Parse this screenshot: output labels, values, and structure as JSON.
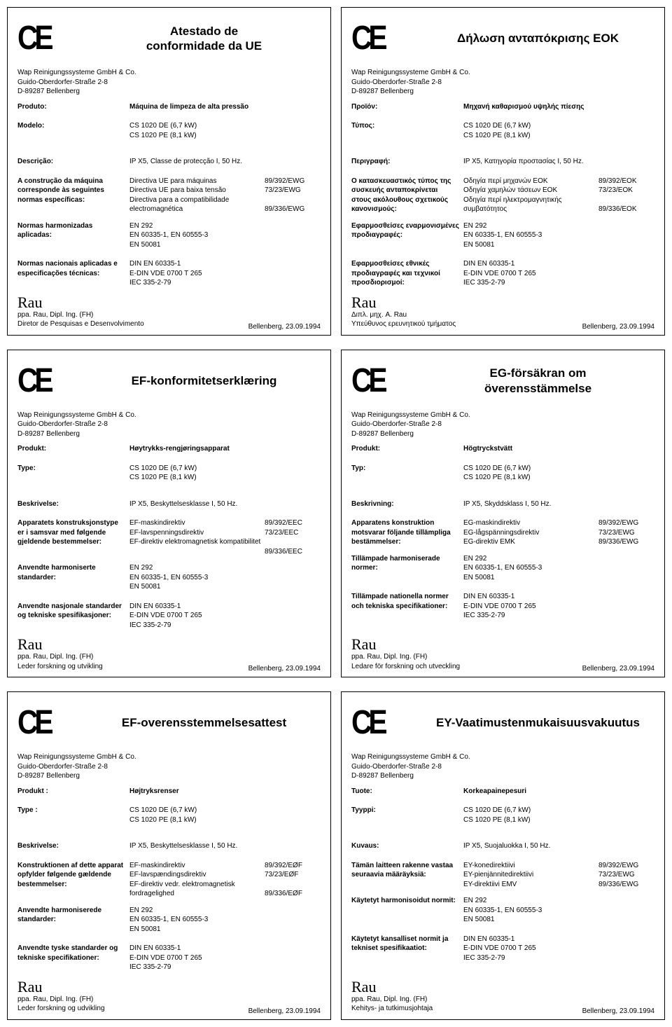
{
  "common": {
    "company": "Wap Reinigungssysteme GmbH & Co.",
    "street": "Guido-Oberdorfer-Straße 2-8",
    "city": "D-89287 Bellenberg",
    "model1": "CS 1020 DE (6,7 kW)",
    "model2": "CS 1020 PE (8,1 kW)",
    "harm1": "EN 292",
    "harm2": "EN 60335-1, EN 60555-3",
    "harm3": "EN 50081",
    "nat1": "DIN EN 60335-1",
    "nat2": "E-DIN VDE 0700 T 265",
    "nat3": "IEC 335-2-79",
    "signature": "ppa. Rau, Dipl. Ing. (FH)",
    "location": "Bellenberg, 23.09.1994",
    "ce": "CE"
  },
  "cards": [
    {
      "title": "Atestado de\nconformidade da UE",
      "lbl_product": "Produto:",
      "val_product": "Máquina de limpeza de alta pressão",
      "lbl_model": "Modelo:",
      "lbl_desc": "Descrição:",
      "val_desc": "IP X5, Classe de protecção I, 50 Hz.",
      "lbl_dir": "A construção da máquina corresponde às seguintes normas específicas:",
      "dir1": "Directiva UE para máquinas",
      "dir2": "Directiva UE para baixa tensão",
      "dir3": "Directiva para a compatibilidade electromagnética",
      "code1": "89/392/EWG",
      "code2": "73/23/EWG",
      "code3": "89/336/EWG",
      "lbl_harm": "Normas harmonizadas aplicadas:",
      "lbl_nat": "Normas nacionais aplicadas e especificações técnicas:",
      "role": "Diretor de Pesquisas e Desenvolvimento",
      "signer_override": ""
    },
    {
      "title": "Δήλωση ανταπόκρισης ΕΟΚ",
      "lbl_product": "Προϊόν:",
      "val_product": "Μηχανή καθαρισμού υψηλής πίεσης",
      "lbl_model": "Τύπος:",
      "lbl_desc": "Περιγραφή:",
      "val_desc": "IP X5, Κατηγορία προστασίας I, 50 Hz.",
      "lbl_dir": "Ο κατασκευαστικός τύπος της συσκευής ανταποκρίνεται στους ακόλουθους σχετικούς κανονισμούς:",
      "dir1": "Οδηγία περί μηχανών ΕΟΚ",
      "dir2": "Οδηγία χαμηλών τάσεων ΕΟΚ",
      "dir3": "Οδηγία περί ηλεκτρομαγνητικής συμβατότητος",
      "code1": "89/392/ΕΟΚ",
      "code2": "73/23/ΕΟΚ",
      "code3": "89/336/ΕΟΚ",
      "lbl_harm": "Εφαρμοσθείσες εναρμονισμένες προδιαγραφές:",
      "lbl_nat": "Εφαρμοσθείσες εθνικές προδιαγραφές και τεχνικοί προσδιορισμοί:",
      "role": "Υπεύθυνος ερευνητικού τμήματος",
      "signer_override": "Διπλ. μηχ. A. Rau"
    },
    {
      "title": "EF-konformitetserklæring",
      "lbl_product": "Produkt:",
      "val_product": "Høytrykks-rengjøringsapparat",
      "lbl_model": "Type:",
      "lbl_desc": "Beskrivelse:",
      "val_desc": "IP X5, Beskyttelsesklasse I, 50 Hz.",
      "lbl_dir": "Apparatets konstruksjonstype er i samsvar med følgende gjeldende bestemmelser:",
      "dir1": "EF-maskindirektiv",
      "dir2": "EF-lavspenningsdirektiv",
      "dir3": "EF-direktiv elektromagnetisk kompatibilitet",
      "code1": "89/392/EEC",
      "code2": "73/23/EEC",
      "code3": "89/336/EEC",
      "lbl_harm": "Anvendte harmoniserte standarder:",
      "lbl_nat": "Anvendte nasjonale standarder og tekniske spesifikasjoner:",
      "role": "Leder forskning og utvikling",
      "signer_override": ""
    },
    {
      "title": "EG-försäkran om\növerensstämmelse",
      "lbl_product": "Produkt:",
      "val_product": "Högtryckstvätt",
      "lbl_model": "Typ:",
      "lbl_desc": "Beskrivning:",
      "val_desc": "IP X5, Skyddsklass I, 50 Hz.",
      "lbl_dir": "Apparatens konstruktion motsvarar följande tillämpliga bestämmelser:",
      "dir1": "EG-maskindirektiv",
      "dir2": "EG-lågspänningsdirektiv",
      "dir3": "EG-direktiv EMK",
      "code1": "89/392/EWG",
      "code2": "73/23/EWG",
      "code3": "89/336/EWG",
      "lbl_harm": "Tillämpade harmoniserade normer:",
      "lbl_nat": "Tillämpade nationella normer och tekniska specifikationer:",
      "role": "Ledare för forskning och utveckling",
      "signer_override": ""
    },
    {
      "title": "EF-overensstemmelsesattest",
      "lbl_product": "Produkt :",
      "val_product": "Højtryksrenser",
      "lbl_model": "Type :",
      "lbl_desc": "Beskrivelse:",
      "val_desc": "IP X5, Beskyttelsesklasse I, 50 Hz.",
      "lbl_dir": "Konstruktionen af dette apparat opfylder følgende gældende bestemmelser:",
      "dir1": "EF-maskindirektiv",
      "dir2": "EF-lavspændingsdirektiv",
      "dir3": "EF-direktiv vedr. elektromagnetisk fordragelighed",
      "code1": "89/392/EØF",
      "code2": "73/23/EØF",
      "code3": "89/336/EØF",
      "lbl_harm": "Anvendte harmoniserede standarder:",
      "lbl_nat": "Anvendte tyske standarder og tekniske specifikationer:",
      "role": "Leder forskning og udvikling",
      "signer_override": ""
    },
    {
      "title": "EY-Vaatimustenmukaisuusvakuutus",
      "lbl_product": "Tuote:",
      "val_product": "Korkeapainepesuri",
      "lbl_model": "Tyyppi:",
      "lbl_desc": "Kuvaus:",
      "val_desc": "IP X5, Suojaluokka I, 50 Hz.",
      "lbl_dir": "Tämän laitteen rakenne vastaa seuraavia määräyksiä:",
      "dir1": "EY-konedirektiivi",
      "dir2": "EY-pienjännitedirektiivi",
      "dir3": "EY-direktiivi EMV",
      "code1": "89/392/EWG",
      "code2": "73/23/EWG",
      "code3": "89/336/EWG",
      "lbl_harm": "Käytetyt harmonisoidut normit:",
      "lbl_nat": "Käytetyt kansalliset normit ja tekniset spesifikaatiot:",
      "role": "Kehitys- ja tutkimusjohtaja",
      "signer_override": ""
    }
  ]
}
